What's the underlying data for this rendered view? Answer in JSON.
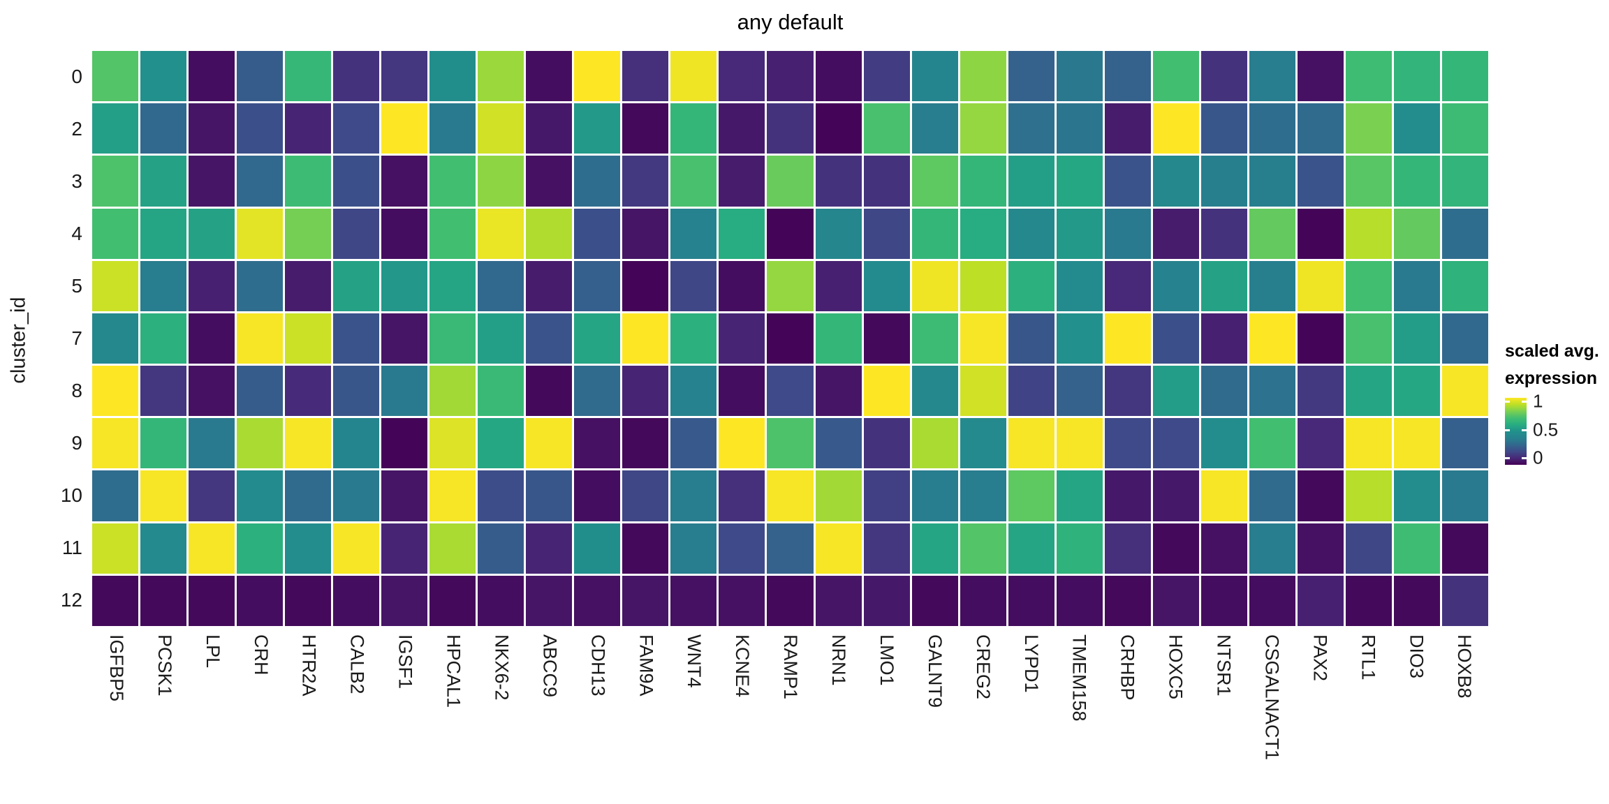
{
  "title": "any default",
  "y_axis_label": "cluster_id",
  "legend": {
    "title_line1": "scaled avg.",
    "title_line2": "expression",
    "ticks": [
      {
        "label": "1",
        "value": 1.0
      },
      {
        "label": "0.5",
        "value": 0.5
      },
      {
        "label": "0",
        "value": 0.0
      }
    ]
  },
  "colors": {
    "background": "#ffffff",
    "cell_gap": "#ffffff",
    "text": "#1a1a1a",
    "viridis_stops": [
      [
        0.0,
        "#440154"
      ],
      [
        0.1,
        "#482878"
      ],
      [
        0.2,
        "#3e4a89"
      ],
      [
        0.3,
        "#31688e"
      ],
      [
        0.4,
        "#26828e"
      ],
      [
        0.5,
        "#21918c"
      ],
      [
        0.6,
        "#27ad81"
      ],
      [
        0.7,
        "#42be71"
      ],
      [
        0.8,
        "#7ad151"
      ],
      [
        0.9,
        "#bddf26"
      ],
      [
        1.0,
        "#fde725"
      ]
    ]
  },
  "chart_data": {
    "type": "heatmap",
    "title": "any default",
    "ylabel": "cluster_id",
    "legend_title": "scaled avg. expression",
    "colorscale": "viridis",
    "value_range": [
      0,
      1
    ],
    "rows": [
      "0",
      "2",
      "3",
      "4",
      "5",
      "7",
      "8",
      "9",
      "10",
      "11",
      "12"
    ],
    "columns": [
      "IGFBP5",
      "PCSK1",
      "LPL",
      "CRH",
      "HTR2A",
      "CALB2",
      "IGSF1",
      "HPCAL1",
      "NKX6-2",
      "ABCC9",
      "CDH13",
      "FAM9A",
      "WNT4",
      "KCNE4",
      "RAMP1",
      "NRN1",
      "LMO1",
      "GALNT9",
      "CREG2",
      "LYPD1",
      "TMEM158",
      "CRHBP",
      "HOXC5",
      "NTSR1",
      "CSGALNACT1",
      "PAX2",
      "RTL1",
      "DIO3",
      "HOXB8"
    ],
    "values": [
      [
        0.73,
        0.49,
        0.03,
        0.26,
        0.66,
        0.13,
        0.14,
        0.48,
        0.85,
        0.03,
        1.0,
        0.12,
        0.98,
        0.1,
        0.08,
        0.03,
        0.16,
        0.42,
        0.83,
        0.28,
        0.36,
        0.28,
        0.7,
        0.13,
        0.38,
        0.04,
        0.69,
        0.64,
        0.65
      ],
      [
        0.55,
        0.3,
        0.05,
        0.22,
        0.09,
        0.2,
        1.0,
        0.37,
        0.93,
        0.06,
        0.53,
        0.02,
        0.65,
        0.06,
        0.13,
        0.01,
        0.71,
        0.38,
        0.84,
        0.33,
        0.35,
        0.07,
        1.0,
        0.24,
        0.32,
        0.31,
        0.8,
        0.47,
        0.68
      ],
      [
        0.72,
        0.56,
        0.05,
        0.3,
        0.68,
        0.22,
        0.04,
        0.7,
        0.83,
        0.04,
        0.32,
        0.15,
        0.71,
        0.07,
        0.77,
        0.13,
        0.13,
        0.75,
        0.65,
        0.55,
        0.58,
        0.23,
        0.44,
        0.39,
        0.39,
        0.23,
        0.74,
        0.65,
        0.64
      ],
      [
        0.7,
        0.57,
        0.56,
        0.96,
        0.79,
        0.19,
        0.03,
        0.7,
        0.97,
        0.88,
        0.22,
        0.05,
        0.4,
        0.6,
        0.01,
        0.43,
        0.19,
        0.65,
        0.6,
        0.44,
        0.53,
        0.37,
        0.07,
        0.13,
        0.76,
        0.01,
        0.89,
        0.76,
        0.32
      ],
      [
        0.92,
        0.38,
        0.08,
        0.32,
        0.07,
        0.56,
        0.52,
        0.57,
        0.3,
        0.07,
        0.27,
        0.01,
        0.19,
        0.03,
        0.84,
        0.08,
        0.46,
        0.98,
        0.9,
        0.62,
        0.46,
        0.1,
        0.4,
        0.56,
        0.39,
        0.98,
        0.7,
        0.37,
        0.63
      ],
      [
        0.44,
        0.62,
        0.03,
        0.99,
        0.92,
        0.23,
        0.05,
        0.67,
        0.55,
        0.23,
        0.57,
        1.0,
        0.62,
        0.09,
        0.01,
        0.65,
        0.02,
        0.68,
        0.99,
        0.24,
        0.49,
        1.0,
        0.22,
        0.08,
        1.0,
        0.01,
        0.71,
        0.54,
        0.3
      ],
      [
        1.0,
        0.14,
        0.04,
        0.26,
        0.11,
        0.24,
        0.37,
        0.86,
        0.67,
        0.02,
        0.31,
        0.09,
        0.4,
        0.03,
        0.2,
        0.05,
        1.0,
        0.44,
        0.93,
        0.18,
        0.28,
        0.14,
        0.54,
        0.31,
        0.34,
        0.15,
        0.57,
        0.58,
        0.99
      ],
      [
        0.99,
        0.65,
        0.37,
        0.87,
        0.99,
        0.42,
        0.01,
        0.95,
        0.58,
        0.99,
        0.04,
        0.02,
        0.25,
        1.0,
        0.72,
        0.25,
        0.13,
        0.87,
        0.45,
        0.99,
        0.99,
        0.2,
        0.2,
        0.47,
        0.7,
        0.1,
        0.99,
        0.99,
        0.27
      ],
      [
        0.32,
        0.99,
        0.14,
        0.46,
        0.31,
        0.37,
        0.05,
        0.99,
        0.21,
        0.24,
        0.03,
        0.19,
        0.38,
        0.12,
        0.99,
        0.86,
        0.17,
        0.38,
        0.38,
        0.75,
        0.57,
        0.06,
        0.06,
        0.99,
        0.31,
        0.02,
        0.89,
        0.47,
        0.37
      ],
      [
        0.92,
        0.45,
        0.99,
        0.62,
        0.47,
        0.99,
        0.09,
        0.87,
        0.26,
        0.09,
        0.48,
        0.02,
        0.38,
        0.2,
        0.28,
        0.99,
        0.14,
        0.57,
        0.73,
        0.57,
        0.63,
        0.12,
        0.02,
        0.04,
        0.38,
        0.04,
        0.19,
        0.69,
        0.02
      ],
      [
        0.02,
        0.02,
        0.02,
        0.03,
        0.02,
        0.03,
        0.05,
        0.02,
        0.03,
        0.05,
        0.04,
        0.05,
        0.04,
        0.04,
        0.02,
        0.05,
        0.06,
        0.02,
        0.03,
        0.03,
        0.03,
        0.02,
        0.05,
        0.03,
        0.03,
        0.08,
        0.02,
        0.02,
        0.13
      ]
    ]
  }
}
